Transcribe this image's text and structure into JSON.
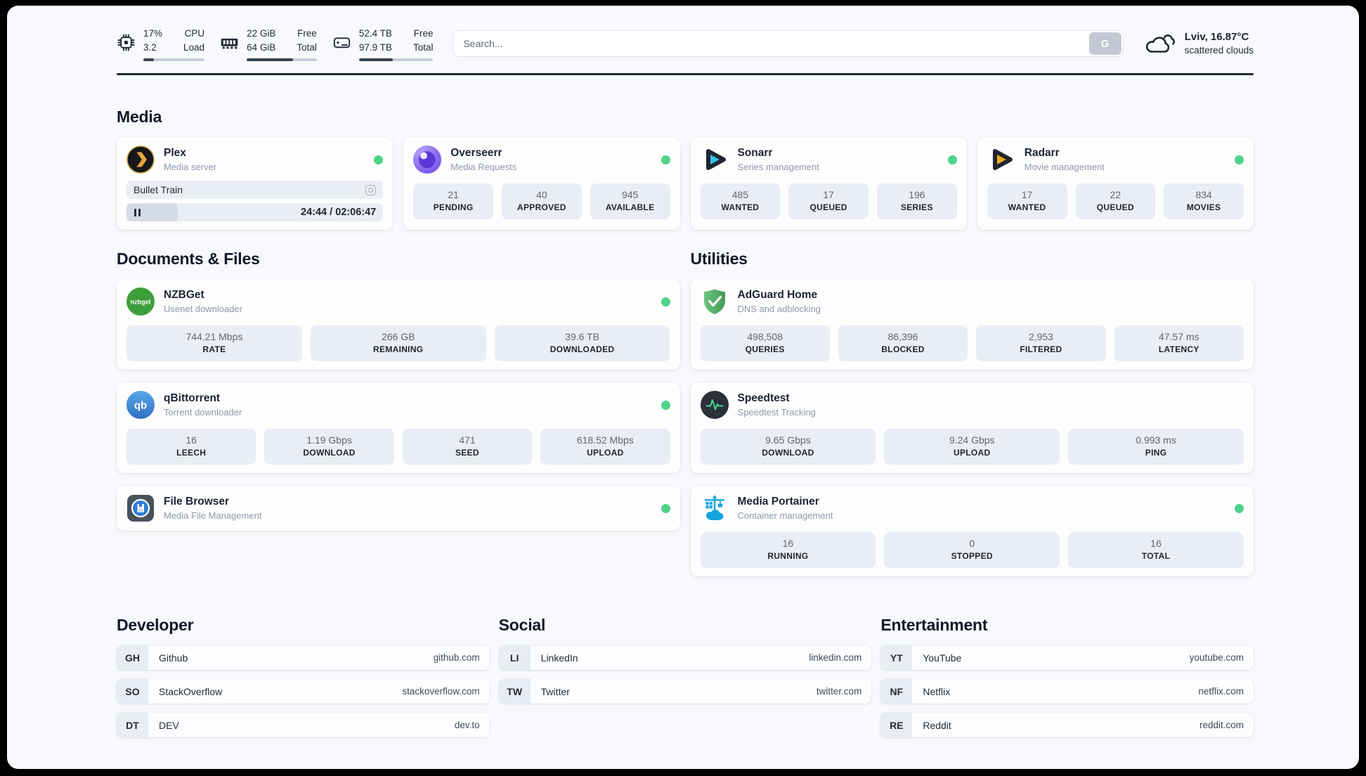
{
  "colors": {
    "status_online": "#4fd38a",
    "progress_fill": "#39414f",
    "progress_track": "#c7cdd8",
    "stat_box_bg": "#e9edf4",
    "page_bg": "#f8f9fc"
  },
  "header": {
    "resources": [
      {
        "icon": "cpu-icon",
        "values": [
          "17%",
          "3.2"
        ],
        "labels": [
          "CPU",
          "Load"
        ],
        "progress_pct": 17
      },
      {
        "icon": "ram-icon",
        "values": [
          "22 GiB",
          "64 GiB"
        ],
        "labels": [
          "Free",
          "Total"
        ],
        "progress_pct": 66
      },
      {
        "icon": "disk-icon",
        "values": [
          "52.4 TB",
          "97.9 TB"
        ],
        "labels": [
          "Free",
          "Total"
        ],
        "progress_pct": 46
      }
    ],
    "search": {
      "placeholder": "Search...",
      "button_label": "G"
    },
    "weather": {
      "location_temp": "Lviv, 16.87°C",
      "condition": "scattered clouds"
    }
  },
  "sections": {
    "media": {
      "title": "Media",
      "apps": {
        "plex": {
          "title": "Plex",
          "subtitle": "Media server",
          "online": true,
          "now_playing": "Bullet Train",
          "elapsed_total": "24:44 / 02:06:47",
          "progress_pct": 20
        },
        "overseerr": {
          "title": "Overseerr",
          "subtitle": "Media Requests",
          "online": true,
          "stats": [
            {
              "value": "21",
              "label": "PENDING"
            },
            {
              "value": "40",
              "label": "APPROVED"
            },
            {
              "value": "945",
              "label": "AVAILABLE"
            }
          ]
        },
        "sonarr": {
          "title": "Sonarr",
          "subtitle": "Series management",
          "online": true,
          "stats": [
            {
              "value": "485",
              "label": "WANTED"
            },
            {
              "value": "17",
              "label": "QUEUED"
            },
            {
              "value": "196",
              "label": "SERIES"
            }
          ]
        },
        "radarr": {
          "title": "Radarr",
          "subtitle": "Movie management",
          "online": true,
          "stats": [
            {
              "value": "17",
              "label": "WANTED"
            },
            {
              "value": "22",
              "label": "QUEUED"
            },
            {
              "value": "834",
              "label": "MOVIES"
            }
          ]
        }
      }
    },
    "documents": {
      "title": "Documents & Files",
      "apps": {
        "nzbget": {
          "title": "NZBGet",
          "subtitle": "Usenet downloader",
          "online": true,
          "stats": [
            {
              "value": "744.21 Mbps",
              "label": "RATE"
            },
            {
              "value": "266 GB",
              "label": "REMAINING"
            },
            {
              "value": "39.6 TB",
              "label": "DOWNLOADED"
            }
          ]
        },
        "qbittorrent": {
          "title": "qBittorrent",
          "subtitle": "Torrent downloader",
          "online": true,
          "stats": [
            {
              "value": "16",
              "label": "LEECH"
            },
            {
              "value": "1.19 Gbps",
              "label": "DOWNLOAD"
            },
            {
              "value": "471",
              "label": "SEED"
            },
            {
              "value": "618.52 Mbps",
              "label": "UPLOAD"
            }
          ]
        },
        "filebrowser": {
          "title": "File Browser",
          "subtitle": "Media File Management",
          "online": true
        }
      }
    },
    "utilities": {
      "title": "Utilities",
      "apps": {
        "adguard": {
          "title": "AdGuard Home",
          "subtitle": "DNS and adblocking",
          "stats": [
            {
              "value": "498,508",
              "label": "QUERIES"
            },
            {
              "value": "86,396",
              "label": "BLOCKED"
            },
            {
              "value": "2,953",
              "label": "FILTERED"
            },
            {
              "value": "47.57 ms",
              "label": "LATENCY"
            }
          ]
        },
        "speedtest": {
          "title": "Speedtest",
          "subtitle": "Speedtest Tracking",
          "stats": [
            {
              "value": "9.65 Gbps",
              "label": "DOWNLOAD"
            },
            {
              "value": "9.24 Gbps",
              "label": "UPLOAD"
            },
            {
              "value": "0.993 ms",
              "label": "PING"
            }
          ]
        },
        "portainer": {
          "title": "Media Portainer",
          "subtitle": "Container management",
          "online": true,
          "stats": [
            {
              "value": "16",
              "label": "RUNNING"
            },
            {
              "value": "0",
              "label": "STOPPED"
            },
            {
              "value": "16",
              "label": "TOTAL"
            }
          ]
        }
      }
    },
    "links": {
      "developer": {
        "title": "Developer",
        "items": [
          {
            "badge": "GH",
            "name": "Github",
            "url": "github.com"
          },
          {
            "badge": "SO",
            "name": "StackOverflow",
            "url": "stackoverflow.com"
          },
          {
            "badge": "DT",
            "name": "DEV",
            "url": "dev.to"
          }
        ]
      },
      "social": {
        "title": "Social",
        "items": [
          {
            "badge": "LI",
            "name": "LinkedIn",
            "url": "linkedin.com"
          },
          {
            "badge": "TW",
            "name": "Twitter",
            "url": "twitter.com"
          }
        ]
      },
      "entertainment": {
        "title": "Entertainment",
        "items": [
          {
            "badge": "YT",
            "name": "YouTube",
            "url": "youtube.com"
          },
          {
            "badge": "NF",
            "name": "Netflix",
            "url": "netflix.com"
          },
          {
            "badge": "RE",
            "name": "Reddit",
            "url": "reddit.com"
          }
        ]
      }
    }
  }
}
